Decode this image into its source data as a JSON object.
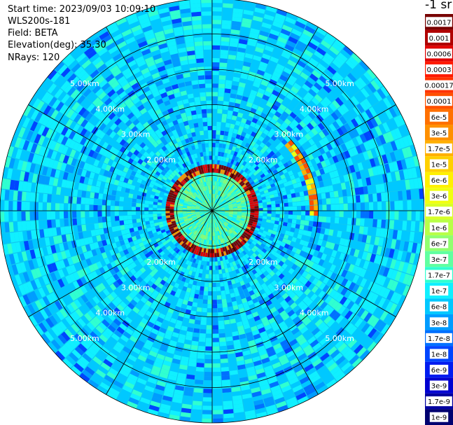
{
  "info": {
    "start_time": "Start time: 2023/09/03 10:09:10",
    "instrument": "WLS200s-181",
    "field": "Field: BETA",
    "elevation": "Elevation(deg): 35.30",
    "nrays": "NRays: 120"
  },
  "chart_data": {
    "type": "ppi-polar",
    "field": "BETA",
    "units": "-1 sr",
    "range_ring_labels": [
      "2.00km",
      "3.00km",
      "4.00km",
      "5.00km"
    ],
    "range_rings_km": [
      1,
      2,
      3,
      4,
      5,
      6
    ],
    "max_range_km": 6,
    "n_rays": 120,
    "colorbar_labels": [
      "0.0017",
      "0.001",
      "0.0006",
      "0.0003",
      "0.00017",
      "0.0001",
      "6e-5",
      "3e-5",
      "1.7e-5",
      "1e-5",
      "6e-6",
      "3e-6",
      "1.7e-6",
      "1e-6",
      "6e-7",
      "3e-7",
      "1.7e-7",
      "1e-7",
      "6e-8",
      "3e-8",
      "1.7e-8",
      "1e-8",
      "6e-9",
      "3e-9",
      "1.7e-9",
      "1e-9"
    ],
    "colorbar_colors": [
      "#780000",
      "#b00000",
      "#e00000",
      "#ff1a00",
      "#ff3300",
      "#ff5000",
      "#ff7000",
      "#ff9000",
      "#ffb000",
      "#ffd000",
      "#fff000",
      "#f0ff10",
      "#d8ff28",
      "#b8ff48",
      "#90ff70",
      "#60ffa0",
      "#30ffd0",
      "#10f0ff",
      "#00c8ff",
      "#009cff",
      "#0070ff",
      "#0045ff",
      "#001cf0",
      "#0000d0",
      "#0000a0",
      "#000070"
    ],
    "feature_ring_km": [
      1.15,
      1.2
    ],
    "feature_arc": {
      "azimuth_deg": [
        48,
        92
      ],
      "range_km": [
        2.8,
        3.0
      ]
    }
  }
}
